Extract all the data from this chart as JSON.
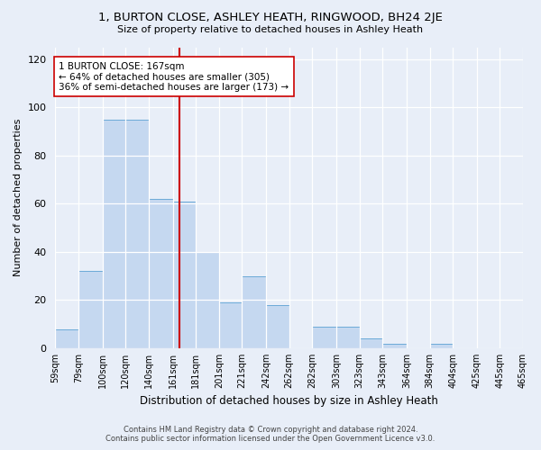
{
  "title": "1, BURTON CLOSE, ASHLEY HEATH, RINGWOOD, BH24 2JE",
  "subtitle": "Size of property relative to detached houses in Ashley Heath",
  "xlabel": "Distribution of detached houses by size in Ashley Heath",
  "ylabel": "Number of detached properties",
  "bar_color": "#c5d8f0",
  "bar_edge_color": "#6baad8",
  "background_color": "#e8eef8",
  "bins": [
    59,
    79,
    100,
    120,
    140,
    161,
    181,
    201,
    221,
    242,
    262,
    282,
    303,
    323,
    343,
    364,
    384,
    404,
    425,
    445,
    465
  ],
  "bin_labels": [
    "59sqm",
    "79sqm",
    "100sqm",
    "120sqm",
    "140sqm",
    "161sqm",
    "181sqm",
    "201sqm",
    "221sqm",
    "242sqm",
    "262sqm",
    "282sqm",
    "303sqm",
    "323sqm",
    "343sqm",
    "364sqm",
    "384sqm",
    "404sqm",
    "425sqm",
    "445sqm",
    "465sqm"
  ],
  "counts": [
    8,
    32,
    95,
    95,
    62,
    61,
    40,
    19,
    30,
    18,
    0,
    9,
    9,
    4,
    2,
    0,
    2,
    0,
    0,
    0
  ],
  "vline_x": 167,
  "vline_color": "#cc0000",
  "annotation_text": "1 BURTON CLOSE: 167sqm\n← 64% of detached houses are smaller (305)\n36% of semi-detached houses are larger (173) →",
  "annotation_box_color": "white",
  "annotation_box_edge": "#cc0000",
  "ylim": [
    0,
    125
  ],
  "yticks": [
    0,
    20,
    40,
    60,
    80,
    100,
    120
  ],
  "footer_line1": "Contains HM Land Registry data © Crown copyright and database right 2024.",
  "footer_line2": "Contains public sector information licensed under the Open Government Licence v3.0."
}
